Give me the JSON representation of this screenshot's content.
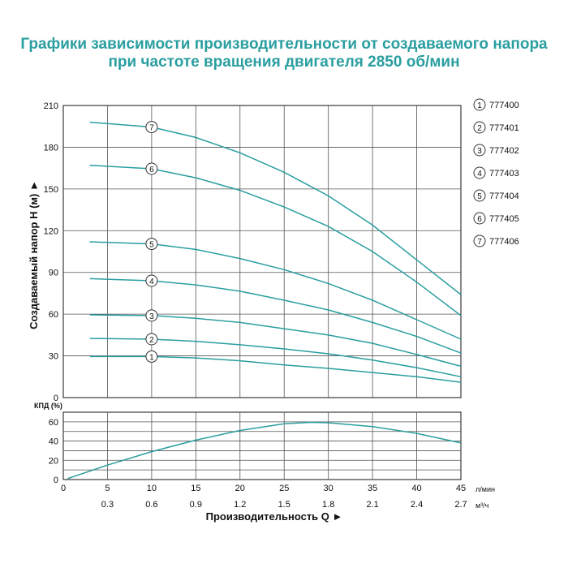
{
  "title_line1": "Графики зависимости производительности от создаваемого напора",
  "title_line2": "при частоте вращения двигателя 2850 об/мин",
  "colors": {
    "title": "#2a9ea0",
    "curve": "#2a9ea0",
    "grid": "#555555",
    "axis": "#111111"
  },
  "chart_data": [
    {
      "type": "line",
      "ylabel": "Создаваемый напор H (м) ►",
      "ylim": [
        0,
        210
      ],
      "yticks": [
        0,
        30,
        60,
        90,
        120,
        150,
        180,
        210
      ],
      "xlim": [
        0,
        45
      ],
      "xticks": [
        0,
        5,
        10,
        15,
        20,
        25,
        30,
        35,
        40,
        45
      ],
      "grid": true,
      "legend_position": "right",
      "series": [
        {
          "name": "777400",
          "marker": "1",
          "x": [
            3,
            10,
            15,
            20,
            25,
            30,
            35,
            40,
            45
          ],
          "y": [
            29.5,
            29.5,
            28.5,
            26.5,
            23.5,
            21,
            18,
            15,
            11
          ]
        },
        {
          "name": "777401",
          "marker": "2",
          "x": [
            3,
            10,
            15,
            20,
            25,
            30,
            35,
            40,
            45
          ],
          "y": [
            42.5,
            42,
            40.5,
            38,
            35,
            31.5,
            27,
            21.5,
            15
          ]
        },
        {
          "name": "777402",
          "marker": "3",
          "x": [
            3,
            10,
            15,
            20,
            25,
            30,
            35,
            40,
            45
          ],
          "y": [
            59.5,
            59,
            57,
            54,
            49.5,
            45,
            39,
            31,
            22.5
          ]
        },
        {
          "name": "777403",
          "marker": "4",
          "x": [
            3,
            10,
            15,
            20,
            25,
            30,
            35,
            40,
            45
          ],
          "y": [
            85.5,
            84,
            81,
            76.5,
            70,
            63,
            54,
            44,
            32
          ]
        },
        {
          "name": "777404",
          "marker": "5",
          "x": [
            3,
            10,
            15,
            20,
            25,
            30,
            35,
            40,
            45
          ],
          "y": [
            112,
            110.5,
            106.5,
            100,
            92,
            82,
            70,
            56,
            42
          ]
        },
        {
          "name": "777405",
          "marker": "6",
          "x": [
            3,
            10,
            15,
            20,
            25,
            30,
            35,
            40,
            45
          ],
          "y": [
            167,
            164.5,
            158,
            149,
            137,
            123,
            105,
            83,
            59
          ]
        },
        {
          "name": "777406",
          "marker": "7",
          "x": [
            3,
            10,
            15,
            20,
            25,
            30,
            35,
            40,
            45
          ],
          "y": [
            198,
            194.5,
            187,
            176,
            162,
            145,
            124,
            99,
            74
          ]
        }
      ]
    },
    {
      "type": "line",
      "ylabel": "КПД (%)",
      "ylim": [
        0,
        70
      ],
      "yticks": [
        0,
        20,
        40,
        60
      ],
      "xlabel": "Производительность Q ►",
      "xlim": [
        0,
        45
      ],
      "xticks": [
        0,
        5,
        10,
        15,
        20,
        25,
        30,
        35,
        40,
        45
      ],
      "x_unit": "л/мин",
      "secondary_xticks": [
        "0.3",
        "0.6",
        "0.9",
        "1.2",
        "1.5",
        "1.8",
        "2.1",
        "2.4",
        "2.7"
      ],
      "secondary_x_unit": "м³/ч",
      "grid": true,
      "series": [
        {
          "name": "КПД",
          "x": [
            0.5,
            5,
            10,
            15,
            20,
            25,
            28,
            30,
            35,
            40,
            45
          ],
          "y": [
            1,
            15,
            29,
            41,
            51,
            58,
            59.5,
            59,
            55,
            48,
            38
          ]
        }
      ]
    }
  ]
}
